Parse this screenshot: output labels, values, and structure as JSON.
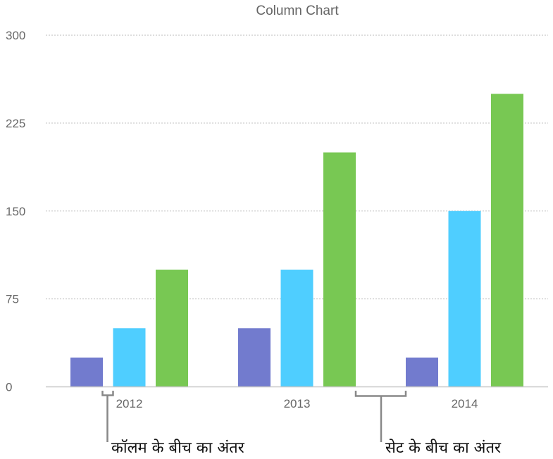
{
  "chart_data": {
    "type": "bar",
    "title": "Column Chart",
    "categories": [
      "2012",
      "2013",
      "2014"
    ],
    "series": [
      {
        "values": [
          25,
          50,
          25
        ],
        "color": "#727BCE"
      },
      {
        "values": [
          50,
          100,
          150
        ],
        "color": "#4FCEFF"
      },
      {
        "values": [
          100,
          200,
          250
        ],
        "color": "#78C853"
      }
    ],
    "ylim": [
      0,
      300
    ],
    "yticks": [
      0,
      75,
      150,
      225,
      300
    ],
    "grid": true,
    "annotations": {
      "column_gap": "कॉलम के बीच का अंतर",
      "set_gap": "सेट के बीच का अंतर"
    }
  }
}
